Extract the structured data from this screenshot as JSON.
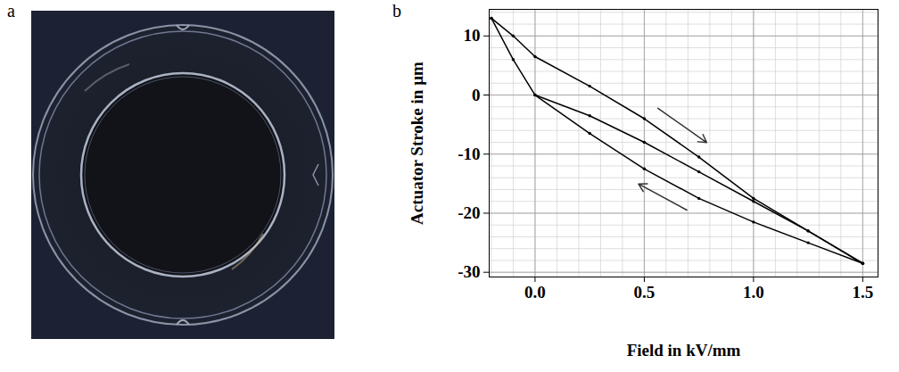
{
  "panel_labels": [
    "a",
    "b"
  ],
  "chart_data": {
    "type": "line",
    "x_label": "Field in kV/mm",
    "y_label": "Actuator Stroke in µm",
    "xlim": [
      -0.21,
      1.57
    ],
    "ylim": [
      -30.8,
      14.5
    ],
    "xticks": [
      {
        "value": 0,
        "label": "0.0"
      },
      {
        "value": 0.5,
        "label": "0.5"
      },
      {
        "value": 1,
        "label": "1.0"
      },
      {
        "value": 1.5,
        "label": "1.5"
      }
    ],
    "yticks": [
      -30,
      -20,
      -10,
      0,
      10
    ],
    "grid": true,
    "series": [
      {
        "x": [
          0,
          0.25,
          0.5,
          0.75,
          1.0,
          1.25,
          1.5
        ],
        "values": [
          0,
          -3.5,
          -8,
          -13,
          -18,
          -23,
          -28.5
        ],
        "color": "#000000",
        "marker": "dot",
        "line_style": "solid"
      },
      {
        "x": [
          1.5,
          1.25,
          1.0,
          0.75,
          0.5,
          0.25,
          0,
          -0.1,
          -0.2
        ],
        "values": [
          -28.5,
          -25,
          -21.5,
          -17.5,
          -12.5,
          -6.5,
          0,
          6,
          13
        ],
        "color": "#000000",
        "marker": "dot",
        "line_style": "solid"
      },
      {
        "x": [
          -0.2,
          -0.1,
          0,
          0.25,
          0.5,
          0.75,
          1.0,
          1.25,
          1.5
        ],
        "values": [
          13,
          10,
          6.5,
          1.5,
          -4,
          -10.5,
          -17.5,
          -23,
          -28.5
        ],
        "color": "#000000",
        "marker": "dot",
        "line_style": "solid"
      }
    ]
  }
}
